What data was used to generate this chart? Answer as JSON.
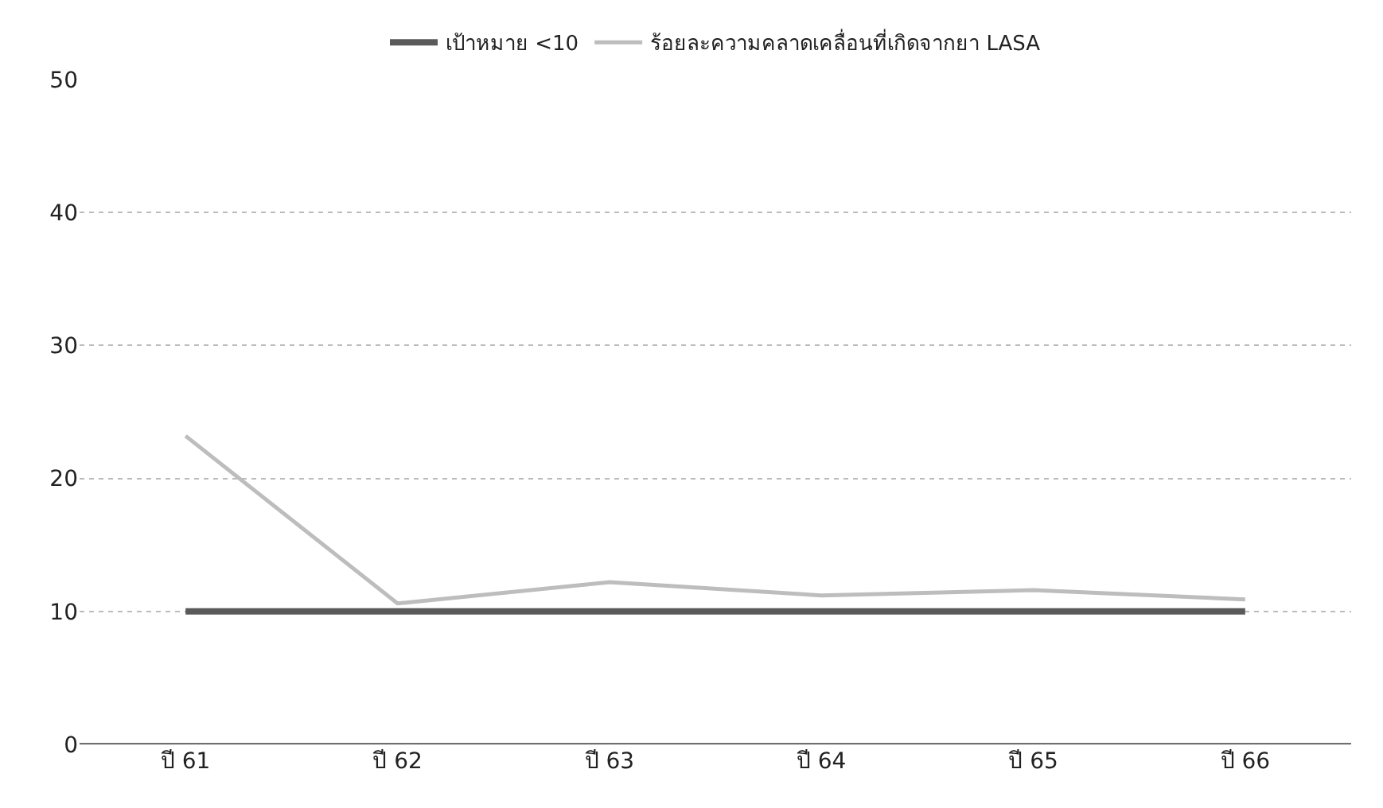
{
  "chart_data": {
    "type": "line",
    "categories": [
      "ปี 61",
      "ปี 62",
      "ปี 63",
      "ปี 64",
      "ปี 65",
      "ปี 66"
    ],
    "series": [
      {
        "name": "เป้าหมาย <10",
        "color": "#5a5a5a",
        "values": [
          10,
          10,
          10,
          10,
          10,
          10
        ]
      },
      {
        "name": "ร้อยละความคลาดเคลื่อนที่เกิดจากยา LASA",
        "color": "#bdbdbd",
        "values": [
          23.2,
          10.6,
          12.2,
          11.2,
          11.6,
          10.9
        ]
      }
    ],
    "ylim": [
      0,
      50
    ],
    "yticks": [
      0,
      10,
      20,
      30,
      40,
      50
    ],
    "grid": "y",
    "legend": "top",
    "marker": "none",
    "line_style": "solid"
  }
}
